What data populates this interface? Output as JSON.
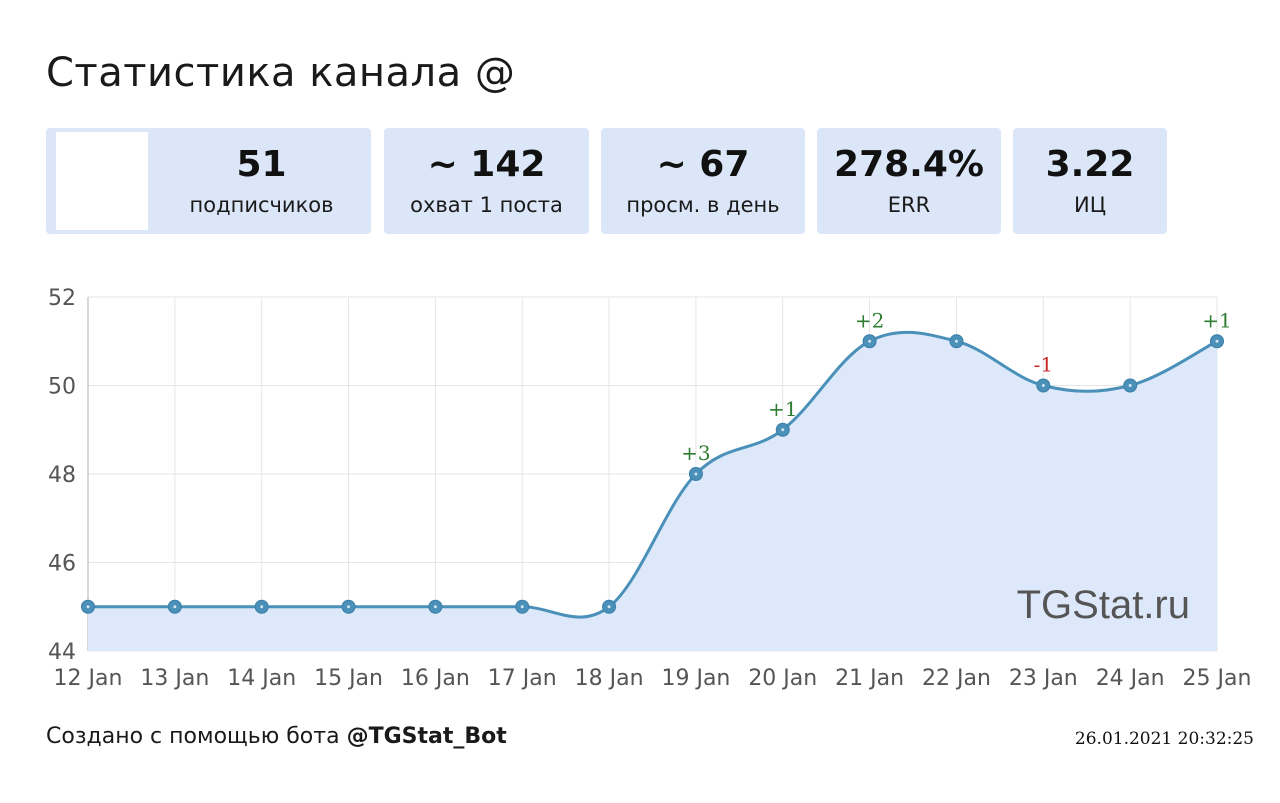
{
  "title": "Статистика канала @",
  "cards": [
    {
      "value": "51",
      "label": "подписчиков"
    },
    {
      "value": "~ 142",
      "label": "охват 1 поста"
    },
    {
      "value": "~ 67",
      "label": "просм. в день"
    },
    {
      "value": "278.4%",
      "label": "ERR"
    },
    {
      "value": "3.22",
      "label": "ИЦ"
    }
  ],
  "chart_data": {
    "type": "line",
    "categories": [
      "12 Jan",
      "13 Jan",
      "14 Jan",
      "15 Jan",
      "16 Jan",
      "17 Jan",
      "18 Jan",
      "19 Jan",
      "20 Jan",
      "21 Jan",
      "22 Jan",
      "23 Jan",
      "24 Jan",
      "25 Jan"
    ],
    "series": [
      {
        "values": [
          45,
          45,
          45,
          45,
          45,
          45,
          45,
          48,
          49,
          51,
          51,
          50,
          50,
          51
        ]
      }
    ],
    "annotations": [
      {
        "index": 7,
        "text": "+3",
        "kind": "up"
      },
      {
        "index": 8,
        "text": "+1",
        "kind": "up"
      },
      {
        "index": 9,
        "text": "+2",
        "kind": "up"
      },
      {
        "index": 11,
        "text": "-1",
        "kind": "down"
      },
      {
        "index": 13,
        "text": "+1",
        "kind": "up"
      }
    ],
    "yticks": [
      "44",
      "46",
      "48",
      "50",
      "52"
    ],
    "ylim": [
      44,
      52
    ],
    "grid": true,
    "watermark": "TGStat.ru",
    "colors": {
      "line": "#4a90b8",
      "area": "#dde9fb",
      "up": "#2e7d32",
      "down": "#c62828",
      "grid": "#e6e6e6"
    }
  },
  "footer": {
    "prefix": "Создано с помощью бота ",
    "bot": "@TGStat_Bot",
    "timestamp": "26.01.2021 20:32:25"
  }
}
